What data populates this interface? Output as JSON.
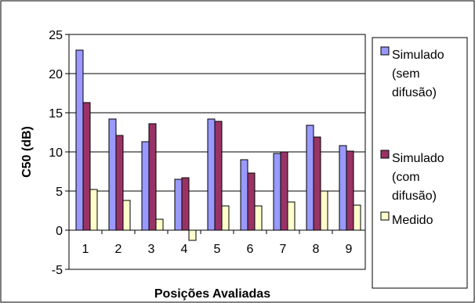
{
  "chart_data": {
    "type": "bar",
    "title": "",
    "xlabel": "Posições Avaliadas",
    "ylabel": "C50 (dB)",
    "categories": [
      "1",
      "2",
      "3",
      "4",
      "5",
      "6",
      "7",
      "8",
      "9"
    ],
    "ylim": [
      -5,
      25
    ],
    "yticks": [
      "-5",
      "0",
      "5",
      "10",
      "15",
      "20",
      "25"
    ],
    "grid": true,
    "legend_position": "right",
    "series": [
      {
        "name": "Simulado (sem difusão)",
        "legend_lines": [
          "Simulado",
          "(sem",
          "difusão)"
        ],
        "color": "#9999ff",
        "values": [
          23.0,
          14.2,
          11.3,
          6.5,
          14.2,
          9.0,
          9.8,
          13.4,
          10.8
        ]
      },
      {
        "name": "Simulado (com difusão)",
        "legend_lines": [
          "Simulado",
          "(com",
          "difusão)"
        ],
        "color": "#993366",
        "values": [
          16.3,
          12.1,
          13.6,
          6.7,
          13.9,
          7.3,
          10.0,
          11.9,
          10.1
        ]
      },
      {
        "name": "Medido",
        "legend_lines": [
          "Medido"
        ],
        "color": "#ffffcc",
        "values": [
          5.2,
          3.8,
          1.4,
          -1.3,
          3.1,
          3.1,
          3.6,
          5.0,
          3.2
        ]
      }
    ]
  }
}
